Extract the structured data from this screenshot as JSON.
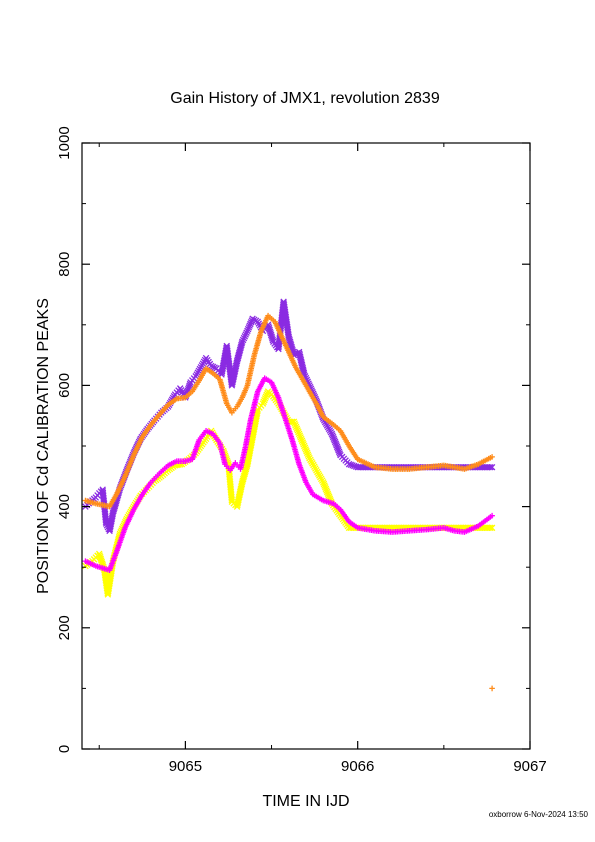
{
  "chart_data": {
    "type": "scatter",
    "title": "Gain History of JMX1, revolution 2839",
    "xlabel": "TIME IN IJD",
    "ylabel": "POSITION OF Cd CALIBRATION PEAKS",
    "xlim": [
      9064.4,
      9067
    ],
    "ylim": [
      0,
      1000
    ],
    "xticks": [
      "9065",
      "9066",
      "9067"
    ],
    "yticks": [
      "0",
      "200",
      "400",
      "600",
      "800",
      "1000"
    ],
    "grid": false,
    "legend": "none",
    "credit": "oxborrow  6-Nov-2024 13:50",
    "series": [
      {
        "color": "#8a2be2",
        "marker": "x",
        "points": [
          [
            9064.42,
            400
          ],
          [
            9064.45,
            408
          ],
          [
            9064.48,
            415
          ],
          [
            9064.5,
            422
          ],
          [
            9064.52,
            428
          ],
          [
            9064.54,
            372
          ],
          [
            9064.56,
            360
          ],
          [
            9064.58,
            390
          ],
          [
            9064.62,
            430
          ],
          [
            9064.66,
            460
          ],
          [
            9064.7,
            488
          ],
          [
            9064.74,
            512
          ],
          [
            9064.78,
            528
          ],
          [
            9064.82,
            542
          ],
          [
            9064.86,
            555
          ],
          [
            9064.9,
            565
          ],
          [
            9064.94,
            585
          ],
          [
            9064.97,
            595
          ],
          [
            9065.0,
            580
          ],
          [
            9065.03,
            605
          ],
          [
            9065.06,
            615
          ],
          [
            9065.09,
            630
          ],
          [
            9065.12,
            645
          ],
          [
            9065.15,
            632
          ],
          [
            9065.18,
            628
          ],
          [
            9065.21,
            618
          ],
          [
            9065.24,
            665
          ],
          [
            9065.27,
            600
          ],
          [
            9065.3,
            640
          ],
          [
            9065.33,
            672
          ],
          [
            9065.36,
            690
          ],
          [
            9065.39,
            710
          ],
          [
            9065.42,
            705
          ],
          [
            9065.45,
            690
          ],
          [
            9065.48,
            700
          ],
          [
            9065.51,
            672
          ],
          [
            9065.54,
            660
          ],
          [
            9065.57,
            738
          ],
          [
            9065.6,
            680
          ],
          [
            9065.63,
            650
          ],
          [
            9065.66,
            655
          ],
          [
            9065.69,
            618
          ],
          [
            9065.72,
            600
          ],
          [
            9065.76,
            575
          ],
          [
            9065.8,
            545
          ],
          [
            9065.85,
            520
          ],
          [
            9065.9,
            485
          ],
          [
            9065.95,
            470
          ],
          [
            9066.0,
            465
          ],
          [
            9066.1,
            465
          ],
          [
            9066.2,
            465
          ],
          [
            9066.3,
            465
          ],
          [
            9066.4,
            465
          ],
          [
            9066.5,
            465
          ],
          [
            9066.6,
            465
          ],
          [
            9066.7,
            465
          ],
          [
            9066.78,
            465
          ]
        ]
      },
      {
        "color": "#ffff00",
        "marker": "x",
        "points": [
          [
            9064.42,
            302
          ],
          [
            9064.46,
            310
          ],
          [
            9064.5,
            322
          ],
          [
            9064.53,
            295
          ],
          [
            9064.55,
            255
          ],
          [
            9064.58,
            310
          ],
          [
            9064.62,
            355
          ],
          [
            9064.66,
            380
          ],
          [
            9064.7,
            400
          ],
          [
            9064.74,
            418
          ],
          [
            9064.78,
            430
          ],
          [
            9064.82,
            442
          ],
          [
            9064.86,
            450
          ],
          [
            9064.9,
            460
          ],
          [
            9064.94,
            468
          ],
          [
            9064.98,
            470
          ],
          [
            9065.02,
            478
          ],
          [
            9065.06,
            488
          ],
          [
            9065.09,
            500
          ],
          [
            9065.12,
            512
          ],
          [
            9065.15,
            525
          ],
          [
            9065.18,
            510
          ],
          [
            9065.22,
            492
          ],
          [
            9065.25,
            470
          ],
          [
            9065.27,
            408
          ],
          [
            9065.3,
            400
          ],
          [
            9065.33,
            440
          ],
          [
            9065.36,
            470
          ],
          [
            9065.39,
            515
          ],
          [
            9065.42,
            560
          ],
          [
            9065.45,
            570
          ],
          [
            9065.48,
            590
          ],
          [
            9065.51,
            582
          ],
          [
            9065.54,
            570
          ],
          [
            9065.57,
            555
          ],
          [
            9065.6,
            540
          ],
          [
            9065.63,
            540
          ],
          [
            9065.66,
            520
          ],
          [
            9065.69,
            500
          ],
          [
            9065.72,
            480
          ],
          [
            9065.76,
            460
          ],
          [
            9065.8,
            440
          ],
          [
            9065.85,
            405
          ],
          [
            9065.9,
            385
          ],
          [
            9065.95,
            365
          ],
          [
            9066.0,
            365
          ],
          [
            9066.1,
            365
          ],
          [
            9066.2,
            365
          ],
          [
            9066.3,
            365
          ],
          [
            9066.4,
            365
          ],
          [
            9066.5,
            365
          ],
          [
            9066.6,
            365
          ],
          [
            9066.7,
            365
          ],
          [
            9066.78,
            365
          ]
        ]
      },
      {
        "color": "#ff00ff",
        "marker": "+",
        "points": [
          [
            9064.42,
            310
          ],
          [
            9064.48,
            302
          ],
          [
            9064.56,
            295
          ],
          [
            9064.6,
            325
          ],
          [
            9064.65,
            365
          ],
          [
            9064.7,
            395
          ],
          [
            9064.75,
            420
          ],
          [
            9064.8,
            440
          ],
          [
            9064.85,
            455
          ],
          [
            9064.9,
            468
          ],
          [
            9064.95,
            475
          ],
          [
            9065.0,
            475
          ],
          [
            9065.04,
            478
          ],
          [
            9065.08,
            510
          ],
          [
            9065.12,
            525
          ],
          [
            9065.16,
            520
          ],
          [
            9065.2,
            505
          ],
          [
            9065.23,
            470
          ],
          [
            9065.26,
            460
          ],
          [
            9065.29,
            472
          ],
          [
            9065.32,
            462
          ],
          [
            9065.35,
            500
          ],
          [
            9065.38,
            545
          ],
          [
            9065.42,
            590
          ],
          [
            9065.46,
            612
          ],
          [
            9065.5,
            605
          ],
          [
            9065.54,
            580
          ],
          [
            9065.58,
            545
          ],
          [
            9065.62,
            510
          ],
          [
            9065.66,
            470
          ],
          [
            9065.7,
            440
          ],
          [
            9065.74,
            420
          ],
          [
            9065.8,
            410
          ],
          [
            9065.86,
            405
          ],
          [
            9065.9,
            395
          ],
          [
            9065.95,
            375
          ],
          [
            9066.0,
            365
          ],
          [
            9066.1,
            360
          ],
          [
            9066.2,
            358
          ],
          [
            9066.3,
            360
          ],
          [
            9066.4,
            362
          ],
          [
            9066.5,
            365
          ],
          [
            9066.56,
            360
          ],
          [
            9066.62,
            358
          ],
          [
            9066.7,
            368
          ],
          [
            9066.78,
            385
          ]
        ]
      },
      {
        "color": "#ff8c1a",
        "marker": "+",
        "points": [
          [
            9064.42,
            410
          ],
          [
            9064.48,
            405
          ],
          [
            9064.56,
            400
          ],
          [
            9064.6,
            420
          ],
          [
            9064.65,
            450
          ],
          [
            9064.7,
            485
          ],
          [
            9064.75,
            515
          ],
          [
            9064.8,
            535
          ],
          [
            9064.85,
            552
          ],
          [
            9064.9,
            568
          ],
          [
            9064.95,
            578
          ],
          [
            9065.0,
            580
          ],
          [
            9065.04,
            590
          ],
          [
            9065.08,
            608
          ],
          [
            9065.12,
            628
          ],
          [
            9065.16,
            620
          ],
          [
            9065.2,
            610
          ],
          [
            9065.24,
            570
          ],
          [
            9065.27,
            555
          ],
          [
            9065.3,
            565
          ],
          [
            9065.33,
            580
          ],
          [
            9065.36,
            600
          ],
          [
            9065.4,
            650
          ],
          [
            9065.44,
            690
          ],
          [
            9065.48,
            715
          ],
          [
            9065.52,
            705
          ],
          [
            9065.56,
            680
          ],
          [
            9065.6,
            655
          ],
          [
            9065.64,
            630
          ],
          [
            9065.68,
            610
          ],
          [
            9065.72,
            590
          ],
          [
            9065.76,
            570
          ],
          [
            9065.8,
            548
          ],
          [
            9065.86,
            535
          ],
          [
            9065.9,
            525
          ],
          [
            9065.95,
            500
          ],
          [
            9066.0,
            478
          ],
          [
            9066.1,
            465
          ],
          [
            9066.2,
            462
          ],
          [
            9066.3,
            462
          ],
          [
            9066.4,
            465
          ],
          [
            9066.5,
            468
          ],
          [
            9066.56,
            465
          ],
          [
            9066.62,
            462
          ],
          [
            9066.7,
            470
          ],
          [
            9066.78,
            482
          ],
          [
            9066.78,
            100
          ]
        ]
      }
    ]
  }
}
